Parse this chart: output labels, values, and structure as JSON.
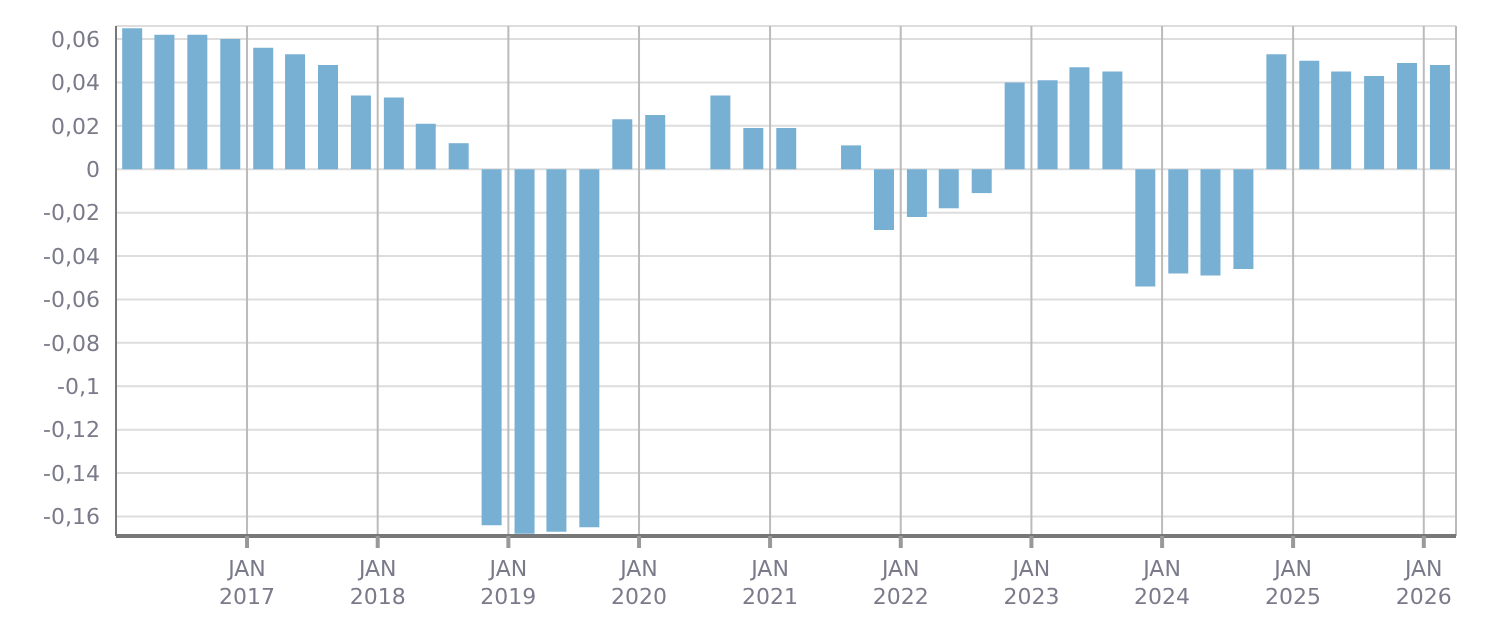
{
  "chart_data": {
    "type": "bar",
    "color": "#78b0d4",
    "x": [
      "2016-02-15",
      "2016-05-15",
      "2016-08-15",
      "2016-11-15",
      "2017-02-15",
      "2017-05-15",
      "2017-08-15",
      "2017-11-15",
      "2018-02-15",
      "2018-05-15",
      "2018-08-15",
      "2018-11-15",
      "2019-02-15",
      "2019-05-15",
      "2019-08-15",
      "2019-11-15",
      "2020-02-15",
      "2020-05-15",
      "2020-08-15",
      "2020-11-15",
      "2021-02-15",
      "2021-05-15",
      "2021-08-15",
      "2021-11-15",
      "2022-02-15",
      "2022-05-15",
      "2022-08-15",
      "2022-11-15",
      "2023-02-15",
      "2023-05-15",
      "2023-08-15",
      "2023-11-15",
      "2024-02-15",
      "2024-05-15",
      "2024-08-15",
      "2024-11-15",
      "2025-02-15",
      "2025-05-15",
      "2025-08-15",
      "2025-11-15",
      "2026-02-15"
    ],
    "values": [
      0.065,
      0.062,
      0.062,
      0.06,
      0.056,
      0.053,
      0.048,
      0.034,
      0.033,
      0.021,
      0.012,
      -0.164,
      -0.168,
      -0.167,
      -0.165,
      0.023,
      0.025,
      null,
      0.034,
      0.019,
      0.019,
      null,
      0.011,
      -0.028,
      -0.022,
      -0.018,
      -0.011,
      0.04,
      0.041,
      0.047,
      0.045,
      -0.054,
      -0.048,
      -0.049,
      -0.046,
      0.053,
      0.05,
      0.045,
      0.043,
      0.049,
      0.048
    ],
    "xlim": [
      "2016-01-01",
      "2026-04-01"
    ],
    "xticks": [
      {
        "value": "2017-01-01",
        "label": "JAN 2017"
      },
      {
        "value": "2018-01-01",
        "label": "JAN 2018"
      },
      {
        "value": "2019-01-01",
        "label": "JAN 2019"
      },
      {
        "value": "2020-01-01",
        "label": "JAN 2020"
      },
      {
        "value": "2021-01-01",
        "label": "JAN 2021"
      },
      {
        "value": "2022-01-01",
        "label": "JAN 2022"
      },
      {
        "value": "2023-01-01",
        "label": "JAN 2023"
      },
      {
        "value": "2024-01-01",
        "label": "JAN 2024"
      },
      {
        "value": "2025-01-01",
        "label": "JAN 2025"
      },
      {
        "value": "2026-01-01",
        "label": "JAN 2026"
      }
    ],
    "ylim": [
      -0.169,
      0.066
    ],
    "yticks": [
      {
        "value": 0.06,
        "label": "0,06"
      },
      {
        "value": 0.04,
        "label": "0,04"
      },
      {
        "value": 0.02,
        "label": "0,02"
      },
      0,
      {
        "value": -0.02,
        "label": "-0,02"
      },
      {
        "value": -0.04,
        "label": "-0,04"
      },
      {
        "value": -0.06,
        "label": "-0,06"
      },
      {
        "value": -0.08,
        "label": "-0,08"
      },
      {
        "value": -0.1,
        "label": "-0,1"
      },
      {
        "value": -0.12,
        "label": "-0,12"
      },
      {
        "value": -0.14,
        "label": "-0,14"
      },
      {
        "value": -0.16,
        "label": "-0,16"
      }
    ],
    "grid": true
  }
}
